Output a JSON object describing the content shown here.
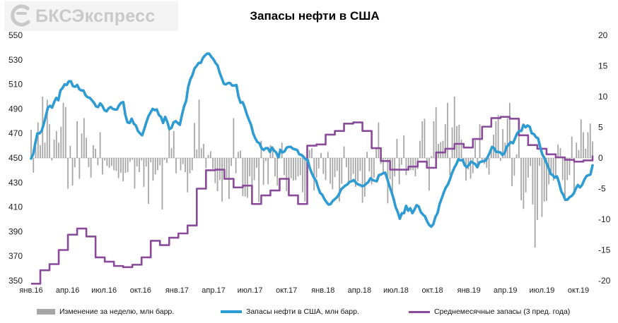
{
  "logo": {
    "text": "БКСЭкспресс"
  },
  "chart_data": {
    "type": "bar+line",
    "title": "Запасы нефти в США",
    "x_labels": [
      "янв.16",
      "апр.16",
      "июл.16",
      "окт.16",
      "янв.17",
      "апр.17",
      "июл.17",
      "окт.17",
      "янв.18",
      "апр.18",
      "июл.18",
      "окт.18",
      "янв.19",
      "апр.19",
      "июл.19",
      "окт.19"
    ],
    "y_left": {
      "min": 350,
      "max": 550,
      "ticks": [
        350,
        370,
        390,
        410,
        430,
        450,
        470,
        490,
        510,
        530,
        550
      ]
    },
    "y_right": {
      "min": -20,
      "max": 20,
      "ticks": [
        -20,
        -15,
        -10,
        -5,
        0,
        5,
        10,
        15,
        20
      ]
    },
    "colors": {
      "bars": "#a6a6a6",
      "stocks": "#2e9bd3",
      "avg": "#8a4a9a"
    },
    "series": [
      {
        "name": "Изменение за неделю, млн барр.",
        "axis": "right",
        "kind": "bar",
        "values": [
          4.6,
          -2.4,
          1.8,
          5.8,
          2.1,
          10.0,
          2.5,
          9.5,
          5.5,
          -0.4,
          3.0,
          4.4,
          2.5,
          5.1,
          9.0,
          8.3,
          -5.0,
          2.0,
          -4.5,
          -1.5,
          6.0,
          -3.4,
          4.0,
          6.5,
          3.3,
          -1.5,
          -3.2,
          2.1,
          1.5,
          -1.2,
          4.2,
          -2.7,
          -0.4,
          -1.3,
          -1.6,
          -1.3,
          -2.0,
          -2.1,
          -3.3,
          -2.4,
          -3.8,
          -2.4,
          -2.3,
          -0.6,
          -0.3,
          -5.0,
          -1.4,
          -2.3,
          -0.4,
          -4.7,
          -1.4,
          -7.5,
          -0.7,
          -3.7,
          -2.7,
          -2.0,
          -1.2,
          -8.4,
          -0.3,
          -0.8,
          5.0,
          1.6,
          4.4,
          -2.5,
          -0.1,
          -2.0,
          -1.0,
          -2.3,
          -5.6,
          -2.5,
          -2.0,
          5.7,
          1.4,
          9.5,
          1.6,
          2.3,
          -1.7,
          0.5,
          1.1,
          -1.8,
          -4.1,
          -5.4,
          -3.6,
          -7.1,
          -1.8,
          -3.2,
          -6.7,
          -1.3,
          6.5,
          -2.5,
          1.0,
          1.2,
          -6.2,
          -6.3,
          -6.5,
          -3.0,
          -7.5,
          -3.6,
          -1.6,
          -7.2,
          2.8,
          -4.4,
          -0.5,
          -4.3,
          2.1,
          1.9,
          -3.0,
          -4.5,
          1.6,
          2.5,
          -2.8,
          -5.4,
          -6.0,
          -3.3,
          -3.7,
          -3.6,
          -3.0,
          -2.8,
          -5.6,
          -7.1,
          -6.1,
          1.3,
          1.6,
          -5.3,
          -3.2,
          -1.7,
          0.8,
          -2.6,
          -3.6,
          1.0,
          -4.2,
          -5.1,
          -3.1,
          -2.1,
          -7.1,
          -4.2,
          1.9,
          -1.5,
          -3.9,
          -3.6,
          -2.6,
          -4.7,
          -3.8,
          -2.1,
          -7.3,
          -6.3,
          1.0,
          -2.2,
          -4.3,
          -3.2,
          1.6,
          5.8,
          -1.0,
          -2.6,
          -0.2,
          -7.4,
          -3.5,
          -6.1,
          -3.0,
          3.1,
          -4.3,
          -1.1,
          3.7,
          -2.8,
          -2.1,
          -2.0,
          -2.0,
          -3.0,
          -1.8,
          2.8,
          6.0,
          6.4,
          -1.7,
          -5.3,
          0.3,
          6.0,
          8.3,
          2.3,
          2.6,
          2.8,
          5.5,
          9.0,
          -2.8,
          5.0,
          10.0,
          5.2,
          5.4,
          3.0,
          -1.2,
          -3.7,
          -1.9,
          -3.4,
          -2.5,
          2.9,
          -1.7,
          5.5,
          -0.8,
          -1.0,
          -1.6,
          -2.7,
          1.4,
          3.8,
          6.0,
          7.0,
          -0.5,
          4.7,
          2.5,
          6.5,
          9.0,
          -4.6,
          -2.9,
          0.6,
          3.6,
          -6.9,
          -8.3,
          -5.6,
          -3.2,
          -1.3,
          -7.6,
          -14.6,
          -10.1,
          -1.3,
          -9.6,
          -7.1,
          -7.0,
          -4.3,
          -2.6,
          -3.7,
          -3.1,
          2.2,
          1.6,
          -3.6,
          -7.0,
          -3.6,
          -2.8,
          3.5,
          -5.7,
          2.5,
          1.3,
          6.3,
          4.2,
          1.5,
          4.2,
          5.6,
          2.7
        ]
      },
      {
        "name": "Запасы нефти в США, млн барр.",
        "axis": "left",
        "kind": "line",
        "values": [
          449.5,
          453.1,
          462,
          470,
          470,
          472,
          477.5,
          484,
          491,
          492.5,
          491,
          495.5,
          499,
          497,
          505,
          507,
          510,
          509.5,
          512.5,
          512.5,
          508.5,
          508,
          509.5,
          506,
          505,
          505,
          501,
          499.5,
          499,
          497,
          495,
          492,
          491.5,
          494.5,
          492.5,
          489,
          488,
          490.5,
          491.5,
          490,
          489.5,
          489.5,
          493,
          495,
          495.5,
          485,
          479,
          478.5,
          482,
          478,
          476.5,
          472,
          470,
          468.5,
          473.5,
          479,
          484,
          487,
          490,
          489,
          489.5,
          485,
          483.5,
          478.5,
          483.5,
          479.5,
          473.5,
          474.5,
          479,
          480,
          478.5,
          477,
          485,
          492,
          496.5,
          508,
          514,
          517.5,
          523,
          525,
          527.5,
          527.5,
          531.5,
          533.5,
          535,
          535,
          532.5,
          530.5,
          527.5,
          525.5,
          519.5,
          515,
          510.5,
          510,
          511,
          511,
          509,
          509,
          509.5,
          500,
          495,
          495.5,
          491,
          485.5,
          481,
          477,
          470,
          466,
          463,
          462,
          458,
          456.5,
          458,
          458,
          455,
          458.5,
          456,
          454.5,
          450.5,
          456.5,
          454.5,
          455.5,
          458.5,
          459,
          459,
          457.5,
          457,
          456.5,
          453,
          452.5,
          451,
          449,
          448.5,
          442,
          437.5,
          434,
          431.5,
          426,
          421.5,
          420,
          416.5,
          414,
          412,
          412.5,
          415,
          416.5,
          418,
          420.5,
          424.5,
          426,
          427.5,
          428.5,
          430.5,
          431,
          432,
          430,
          428.5,
          428,
          427,
          427.5,
          429,
          430.5,
          433.5,
          432,
          431.5,
          431,
          436,
          436.5,
          437.5,
          438,
          433,
          427.5,
          422.5,
          417,
          410,
          406,
          400.5,
          405,
          405,
          411,
          407,
          409,
          405,
          408,
          411.5,
          410.5,
          406,
          404,
          402.5,
          398.5,
          395.5,
          394,
          396,
          402,
          405,
          412.5,
          417,
          422,
          426,
          428.5,
          433,
          438,
          442,
          445,
          449,
          448,
          448.5,
          444,
          442.5,
          444.5,
          447,
          446,
          445,
          442.5,
          446.5,
          447,
          447.5,
          448,
          451,
          454.5,
          459,
          458,
          455,
          455,
          454.5,
          452.5,
          454,
          459,
          461,
          463,
          462,
          466,
          470,
          472,
          472,
          477,
          475,
          476.5,
          475.5,
          470,
          469.5,
          467,
          466,
          459,
          453,
          450,
          446,
          442,
          437,
          436,
          434,
          435,
          430,
          423,
          420,
          416,
          416,
          418,
          419,
          421,
          425,
          428,
          426,
          428,
          432,
          435,
          436,
          436.5,
          444
        ]
      },
      {
        "name": "Среднемесячные запасы (3 пред. года)",
        "axis": "right",
        "kind": "step-line",
        "values": [
          -20.5,
          -18.3,
          -17.3,
          -15,
          -12.5,
          -11.5,
          -12.8,
          -16.2,
          -16.9,
          -17.6,
          -17.8,
          -17.4,
          -16.2,
          -13.5,
          -14.2,
          -13,
          -12.3,
          -11,
          -5,
          -2,
          -1.9,
          -3.4,
          -4.8,
          -4.5,
          -7.5,
          -6.1,
          -5.3,
          -3.4,
          -6.1,
          -7.5,
          2,
          2.2,
          3.8,
          4.4,
          5.6,
          5.8,
          4.4,
          1.6,
          -0.5,
          -1.9,
          -1.9,
          -1.4,
          -0.6,
          -1.6,
          0.9,
          1.5,
          2.3,
          1.7,
          3.1,
          5.1,
          6.5,
          6.7,
          6.4,
          3.7,
          2.1,
          1.5,
          0.6,
          0.1,
          -0.3,
          -0.6,
          -0.4,
          0.4
        ]
      }
    ]
  },
  "legend": [
    {
      "label": "Изменение за неделю, млн барр."
    },
    {
      "label": "Запасы нефти в США, млн барр."
    },
    {
      "label": "Среднемесячные запасы (3 пред. года)"
    }
  ]
}
